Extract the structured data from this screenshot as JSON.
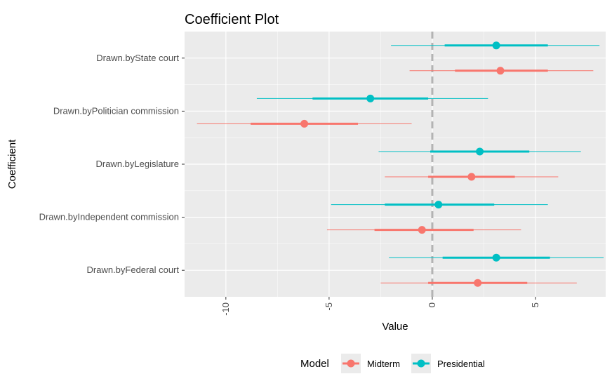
{
  "chart_data": {
    "type": "coefficient-plot",
    "title": "Coefficient Plot",
    "xlabel": "Value",
    "ylabel": "Coefficient",
    "xlim": [
      -12.0,
      8.4
    ],
    "x_ticks": [
      -10,
      -5,
      0,
      5
    ],
    "x_tick_labels": [
      "-10",
      "-5",
      "0",
      "5"
    ],
    "reference_line": 0,
    "grid": true,
    "categories": [
      "Drawn.byState court",
      "Drawn.byPolitician commission",
      "Drawn.byLegislature",
      "Drawn.byIndependent commission",
      "Drawn.byFederal court"
    ],
    "legend": {
      "title": "Model",
      "position": "bottom"
    },
    "series": [
      {
        "name": "Presidential",
        "color": "#00BFC4",
        "points": [
          {
            "category": "Drawn.byState court",
            "estimate": 3.1,
            "inner": [
              0.6,
              5.6
            ],
            "outer": [
              -2.0,
              8.1
            ]
          },
          {
            "category": "Drawn.byPolitician commission",
            "estimate": -3.0,
            "inner": [
              -5.8,
              -0.2
            ],
            "outer": [
              -8.5,
              2.7
            ]
          },
          {
            "category": "Drawn.byLegislature",
            "estimate": 2.3,
            "inner": [
              -0.1,
              4.7
            ],
            "outer": [
              -2.6,
              7.2
            ]
          },
          {
            "category": "Drawn.byIndependent commission",
            "estimate": 0.3,
            "inner": [
              -2.3,
              3.0
            ],
            "outer": [
              -4.9,
              5.6
            ]
          },
          {
            "category": "Drawn.byFederal court",
            "estimate": 3.1,
            "inner": [
              0.5,
              5.7
            ],
            "outer": [
              -2.1,
              8.3
            ]
          }
        ]
      },
      {
        "name": "Midterm",
        "color": "#F8766D",
        "points": [
          {
            "category": "Drawn.byState court",
            "estimate": 3.3,
            "inner": [
              1.1,
              5.6
            ],
            "outer": [
              -1.1,
              7.8
            ]
          },
          {
            "category": "Drawn.byPolitician commission",
            "estimate": -6.2,
            "inner": [
              -8.8,
              -3.6
            ],
            "outer": [
              -11.4,
              -1.0
            ]
          },
          {
            "category": "Drawn.byLegislature",
            "estimate": 1.9,
            "inner": [
              -0.2,
              4.0
            ],
            "outer": [
              -2.3,
              6.1
            ]
          },
          {
            "category": "Drawn.byIndependent commission",
            "estimate": -0.5,
            "inner": [
              -2.8,
              2.0
            ],
            "outer": [
              -5.1,
              4.3
            ]
          },
          {
            "category": "Drawn.byFederal court",
            "estimate": 2.2,
            "inner": [
              -0.2,
              4.6
            ],
            "outer": [
              -2.5,
              7.0
            ]
          }
        ]
      }
    ],
    "legend_order": [
      "Midterm",
      "Presidential"
    ]
  },
  "colors": {
    "panel_background": "#EBEBEB",
    "grid_major": "#FFFFFF",
    "reference_line": "#B3B3B3"
  }
}
